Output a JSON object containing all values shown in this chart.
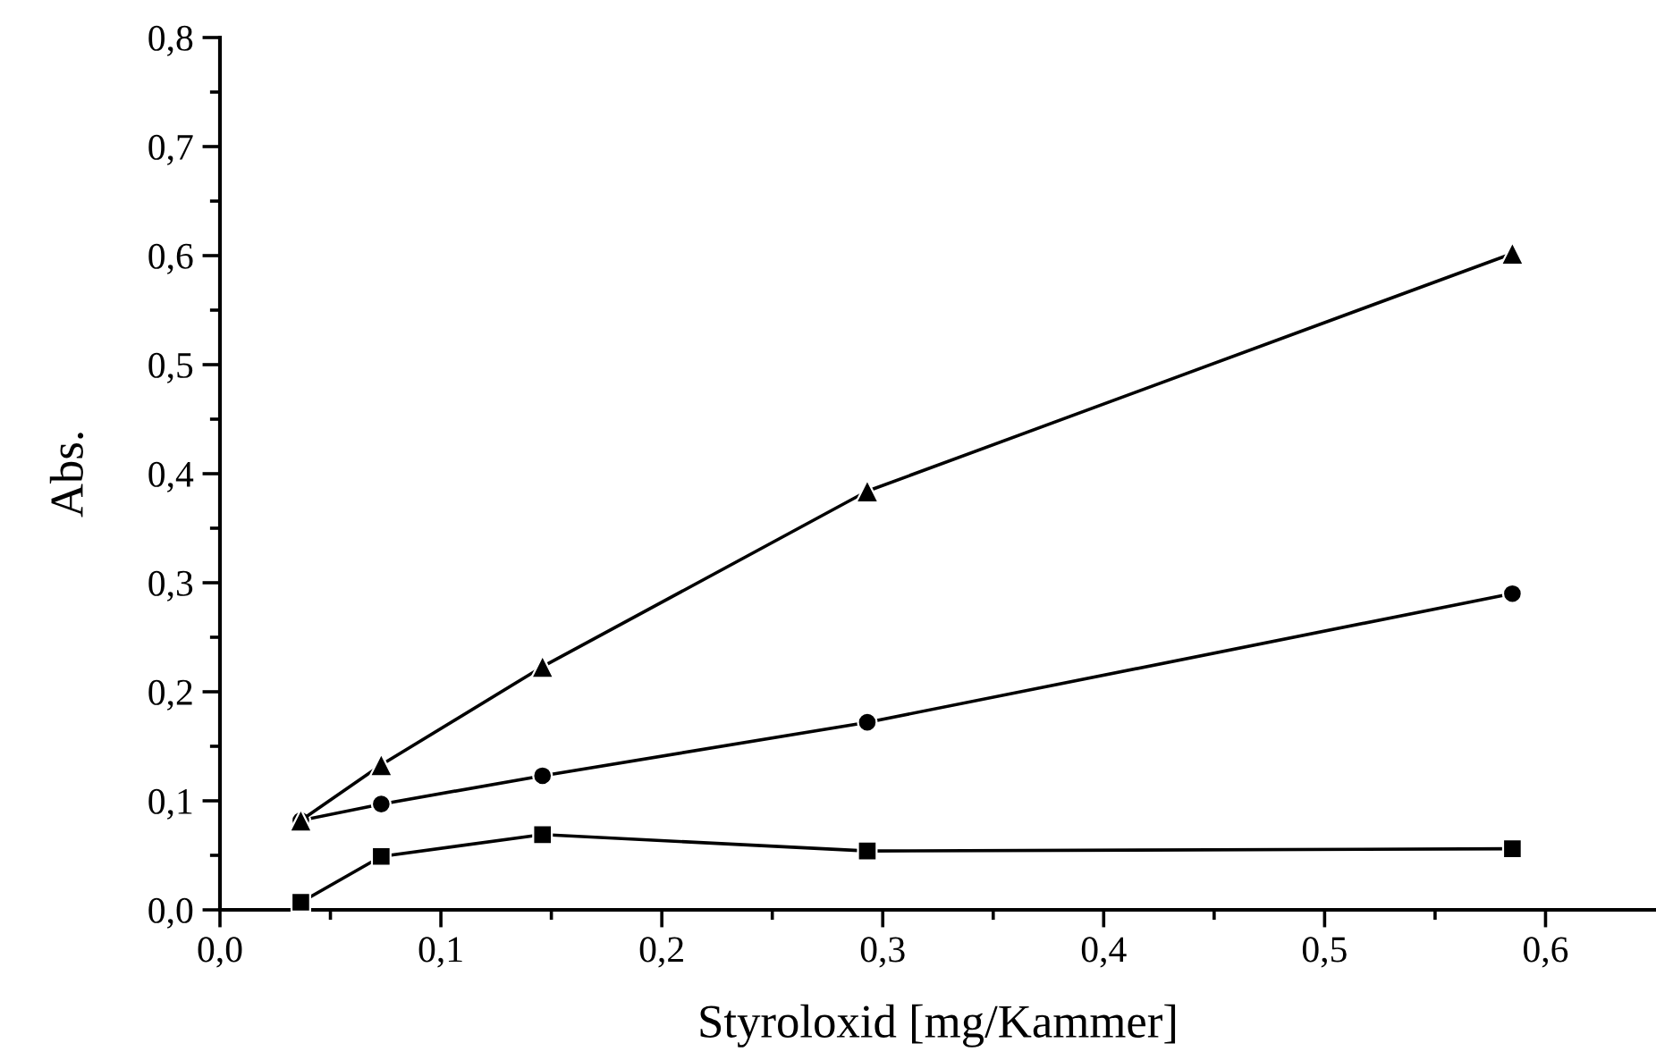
{
  "chart_data": {
    "type": "line",
    "xlabel": "Styroloxid [mg/Kammer]",
    "ylabel": "Abs.",
    "x": [
      0.0366,
      0.073,
      0.146,
      0.293,
      0.585
    ],
    "series": [
      {
        "color": "#000000",
        "marker": "circle",
        "values": [
          0.082,
          0.097,
          0.123,
          0.172,
          0.29
        ]
      },
      {
        "color": "#000000",
        "marker": "triangle",
        "values": [
          0.082,
          0.133,
          0.223,
          0.384,
          0.602
        ]
      },
      {
        "color": "#000000",
        "marker": "square",
        "values": [
          0.007,
          0.049,
          0.069,
          0.054,
          0.056
        ]
      }
    ],
    "xlim": [
      0,
      0.65
    ],
    "ylim": [
      0,
      0.8
    ],
    "xticks": [
      {
        "value": 0,
        "label": "0,0"
      },
      {
        "value": 0.05,
        "label": null
      },
      {
        "value": 0.1,
        "label": "0,1"
      },
      {
        "value": 0.15,
        "label": null
      },
      {
        "value": 0.2,
        "label": "0,2"
      },
      {
        "value": 0.25,
        "label": null
      },
      {
        "value": 0.3,
        "label": "0,3"
      },
      {
        "value": 0.35,
        "label": null
      },
      {
        "value": 0.4,
        "label": "0,4"
      },
      {
        "value": 0.45,
        "label": null
      },
      {
        "value": 0.5,
        "label": "0,5"
      },
      {
        "value": 0.55,
        "label": null
      },
      {
        "value": 0.6,
        "label": "0,6"
      }
    ],
    "yticks": [
      {
        "value": 0,
        "label": "0,0"
      },
      {
        "value": 0.05,
        "label": null
      },
      {
        "value": 0.1,
        "label": "0,1"
      },
      {
        "value": 0.15,
        "label": null
      },
      {
        "value": 0.2,
        "label": "0,2"
      },
      {
        "value": 0.25,
        "label": null
      },
      {
        "value": 0.3,
        "label": "0,3"
      },
      {
        "value": 0.35,
        "label": null
      },
      {
        "value": 0.4,
        "label": "0,4"
      },
      {
        "value": 0.45,
        "label": null
      },
      {
        "value": 0.5,
        "label": "0,5"
      },
      {
        "value": 0.55,
        "label": null
      },
      {
        "value": 0.6,
        "label": "0,6"
      },
      {
        "value": 0.65,
        "label": null
      },
      {
        "value": 0.7,
        "label": "0,7"
      },
      {
        "value": 0.75,
        "label": null
      },
      {
        "value": 0.8,
        "label": "0,8"
      }
    ],
    "grid": false,
    "legend": false,
    "line_style": "solid"
  }
}
